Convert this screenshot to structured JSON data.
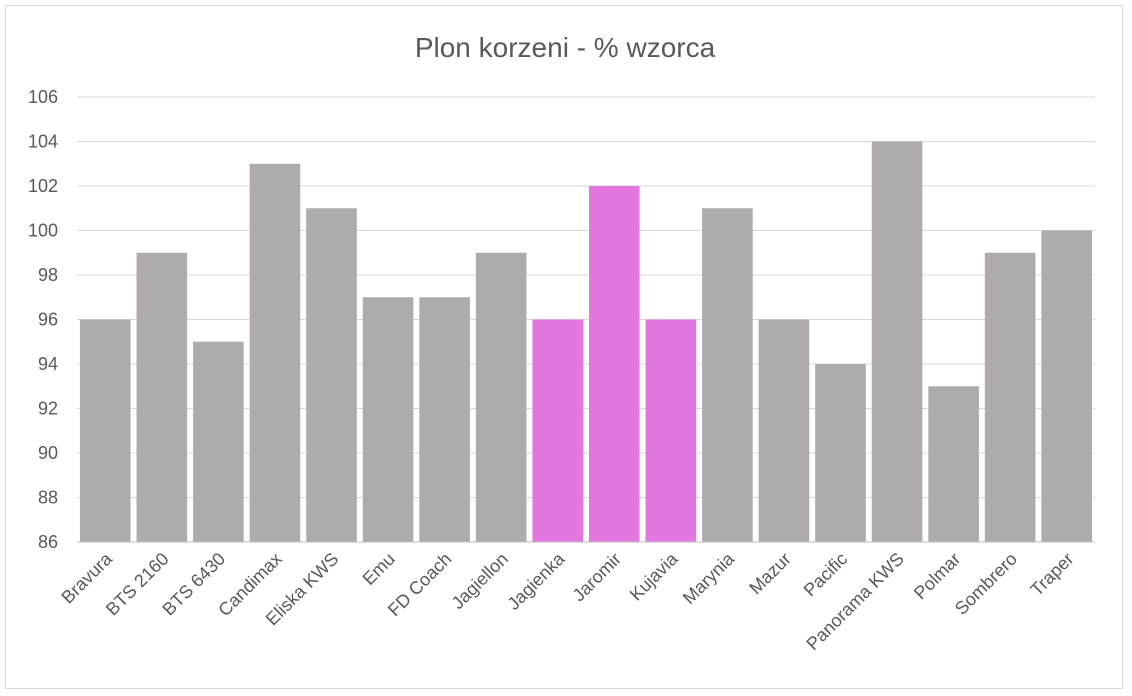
{
  "chart_data": {
    "type": "bar",
    "title": "Plon korzeni - % wzorca",
    "xlabel": "",
    "ylabel": "",
    "ylim": [
      86,
      106
    ],
    "yticks": [
      "86",
      "88",
      "90",
      "92",
      "94",
      "96",
      "98",
      "100",
      "102",
      "104",
      "106"
    ],
    "grid": true,
    "legend": "none",
    "categories": [
      "Bravura",
      "BTS 2160",
      "BTS 6430",
      "Candimax",
      "Eliska KWS",
      "Emu",
      "FD Coach",
      "Jagiellon",
      "Jagienka",
      "Jaromir",
      "Kujavia",
      "Marynia",
      "Mazur",
      "Pacific",
      "Panorama KWS",
      "Polmar",
      "Sombrero",
      "Traper"
    ],
    "values": [
      96,
      99,
      95,
      103,
      101,
      97,
      97,
      99,
      96,
      102,
      96,
      101,
      96,
      94,
      104,
      93,
      99,
      100
    ],
    "highlighted": [
      "Jagienka",
      "Jaromir",
      "Kujavia"
    ],
    "colors": {
      "default_bar": "#afabab",
      "highlight_bar": "#e377e0"
    }
  }
}
